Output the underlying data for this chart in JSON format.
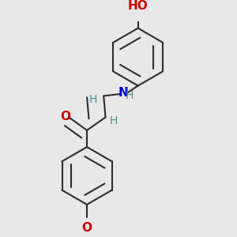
{
  "background_color": "#e8e8e8",
  "bond_color": "#2d2d2d",
  "oxygen_color": "#cc0000",
  "nitrogen_color": "#0000cc",
  "hydrogen_color": "#4a9090",
  "bond_width": 1.5,
  "dbo": 0.05,
  "font_size_atom": 11,
  "font_size_h": 10,
  "fig_size": [
    3.0,
    3.0
  ],
  "dpi": 100,
  "xlim": [
    -0.05,
    1.05
  ],
  "ylim": [
    -0.05,
    1.1
  ]
}
